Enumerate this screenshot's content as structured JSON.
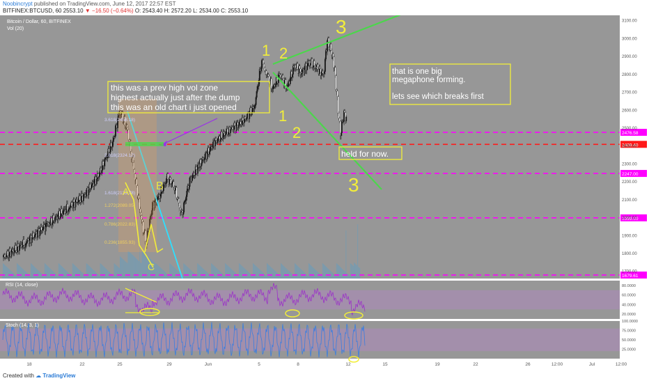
{
  "header": {
    "author": "Noobincrypt",
    "published": "published on TradingView.com, June 12, 2017 22:57 EST",
    "symbol": "BITFINEX:BTCUSD, 60",
    "last": "2553.10",
    "change_icon": "triangle-down-icon",
    "change": "−16.50 (−0.64%)",
    "open": "O: 2543.40",
    "high": "H: 2572.20",
    "low": "L: 2534.00",
    "close": "C: 2553.10"
  },
  "pane_labels": {
    "main_title": "Bitcoin / Dollar, 60, BITFINEX",
    "vol": "Vol (20)",
    "rsi": "RSI (14, close)",
    "stoch": "Stoch (14, 3, 1)"
  },
  "footer": {
    "created_with": "Created with",
    "brand": "TradingView"
  },
  "colors": {
    "background": "#979797",
    "candle_up": "#1a1a1a",
    "candle_down": "#ffffff",
    "magenta": "#ff00ff",
    "red": "#ff1a1a",
    "green": "#4cd64c",
    "cyan": "#2ee0ff",
    "yellow": "#f2ee3a",
    "rsi": "#9b30c8",
    "stoch": "#3a7ee0"
  },
  "chart_data": {
    "type": "line",
    "title": "Bitcoin / Dollar, 60, BITFINEX",
    "x_ticks": [
      "18",
      "22",
      "25",
      "29",
      "Jun",
      "5",
      "8",
      "12",
      "15",
      "19",
      "22",
      "26",
      "12:00",
      "Jul",
      "12:00"
    ],
    "y_ticks": [
      "3100.00",
      "3000.00",
      "2900.00",
      "2800.00",
      "2700.00",
      "2600.00",
      "2500.00",
      "2400.00",
      "2300.00",
      "2200.00",
      "2100.00",
      "2000.00",
      "1900.00",
      "1800.00",
      "1700.00"
    ],
    "ylim": [
      1660,
      3130
    ],
    "price_series": [
      {
        "x": 0,
        "y": 1780
      },
      {
        "x": 3,
        "y": 1860
      },
      {
        "x": 6,
        "y": 1960
      },
      {
        "x": 9,
        "y": 2060
      },
      {
        "x": 11,
        "y": 2120
      },
      {
        "x": 13,
        "y": 2230
      },
      {
        "x": 15,
        "y": 2420
      },
      {
        "x": 16,
        "y": 2600
      },
      {
        "x": 17,
        "y": 2500
      },
      {
        "x": 18,
        "y": 2250
      },
      {
        "x": 19,
        "y": 1980
      },
      {
        "x": 19.6,
        "y": 1860
      },
      {
        "x": 20.5,
        "y": 2070
      },
      {
        "x": 21.5,
        "y": 2130
      },
      {
        "x": 22.5,
        "y": 2220
      },
      {
        "x": 23.5,
        "y": 2180
      },
      {
        "x": 24.5,
        "y": 2010
      },
      {
        "x": 25.5,
        "y": 2200
      },
      {
        "x": 27,
        "y": 2300
      },
      {
        "x": 29,
        "y": 2420
      },
      {
        "x": 31,
        "y": 2490
      },
      {
        "x": 33,
        "y": 2540
      },
      {
        "x": 34.5,
        "y": 2620
      },
      {
        "x": 35.5,
        "y": 2880
      },
      {
        "x": 36,
        "y": 2820
      },
      {
        "x": 37,
        "y": 2720
      },
      {
        "x": 38,
        "y": 2800
      },
      {
        "x": 39,
        "y": 2730
      },
      {
        "x": 40,
        "y": 2850
      },
      {
        "x": 41,
        "y": 2810
      },
      {
        "x": 42,
        "y": 2870
      },
      {
        "x": 43,
        "y": 2840
      },
      {
        "x": 44,
        "y": 2800
      },
      {
        "x": 44.5,
        "y": 2990
      },
      {
        "x": 45.3,
        "y": 2900
      },
      {
        "x": 45.8,
        "y": 2700
      },
      {
        "x": 46.3,
        "y": 2470
      },
      {
        "x": 46.8,
        "y": 2580
      },
      {
        "x": 47.2,
        "y": 2553
      }
    ],
    "horizontal_levels": [
      {
        "price": 2476.58,
        "label": "2476.58",
        "color": "#ff00ff",
        "style": "dashed"
      },
      {
        "price": 2409.4,
        "label": "2409.40",
        "color": "#ff1a1a",
        "style": "dashed"
      },
      {
        "price": 2247.0,
        "label": "2247.00",
        "color": "#ff00ff",
        "style": "dashed"
      },
      {
        "price": 1999.0,
        "label": "1999.00",
        "color": "#ff00ff",
        "style": "dashed"
      },
      {
        "price": 1679.61,
        "label": "1679.61",
        "color": "#ff00ff",
        "style": "dashed"
      }
    ],
    "fib_labels": [
      "3.618(2458.18)",
      "2.618(2324.12)",
      "1.618(2133.78)",
      "1.272(2089.05)",
      "0.786(2022.83)",
      "0.236(1855.93)"
    ],
    "rsi_ticks": [
      "80.0000",
      "60.0000",
      "40.0000",
      "20.0000"
    ],
    "stoch_ticks": [
      "100.0000",
      "75.0000",
      "50.0000",
      "25.0000"
    ],
    "annotations": {
      "box1": [
        "this was a prev high vol zone",
        "highest actually just after the dump",
        "this was an old chart i just opened"
      ],
      "box2": [
        "that is one big",
        "megaphone forming.",
        "",
        "lets see which breaks first"
      ],
      "box3": "held for now.",
      "wave_labels": [
        "1",
        "2",
        "3",
        "1",
        "2",
        "3"
      ],
      "ab_labels": [
        "A",
        "C",
        "B"
      ]
    }
  }
}
